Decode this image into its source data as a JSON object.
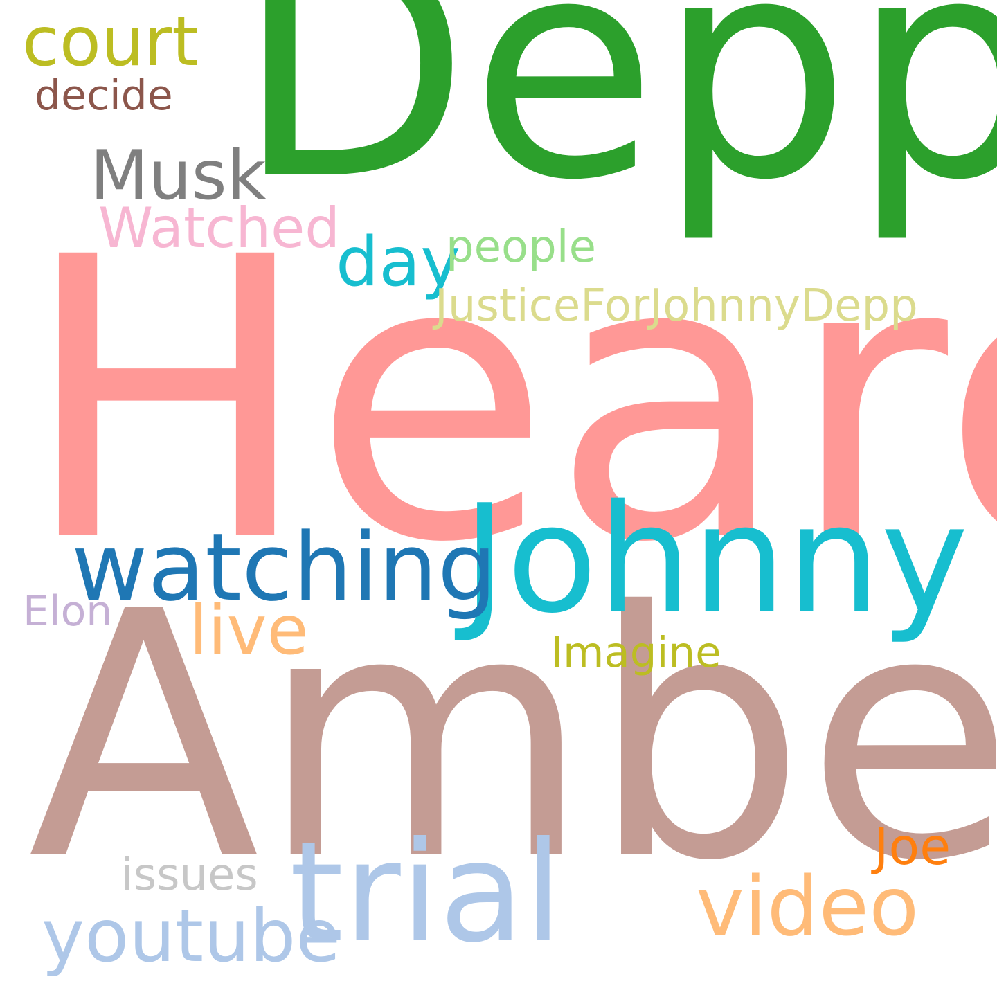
{
  "words": [
    {
      "key": "heard",
      "text": "Heard",
      "color": "#ff9896"
    },
    {
      "key": "depp",
      "text": "Depp",
      "color": "#2ca02c"
    },
    {
      "key": "amber",
      "text": "Amber",
      "color": "#c49c94"
    },
    {
      "key": "johnny",
      "text": "Johnny",
      "color": "#17becf"
    },
    {
      "key": "trial",
      "text": "trial",
      "color": "#aec7e8"
    },
    {
      "key": "watching",
      "text": "watching",
      "color": "#1f77b4"
    },
    {
      "key": "video",
      "text": "video",
      "color": "#ffbb78"
    },
    {
      "key": "youtube",
      "text": "youtube",
      "color": "#aec7e8"
    },
    {
      "key": "musk",
      "text": "Musk",
      "color": "#7f7f7f"
    },
    {
      "key": "court",
      "text": "court",
      "color": "#bcbd22"
    },
    {
      "key": "live",
      "text": "live",
      "color": "#ffbb78"
    },
    {
      "key": "day",
      "text": "day",
      "color": "#17becf"
    },
    {
      "key": "watched",
      "text": "Watched",
      "color": "#f7b6d2"
    },
    {
      "key": "justice",
      "text": "JusticeForJohnnyDepp",
      "color": "#dbdb8d"
    },
    {
      "key": "joe",
      "text": "Joe",
      "color": "#ff7f0e"
    },
    {
      "key": "people",
      "text": "people",
      "color": "#98df8a"
    },
    {
      "key": "issues",
      "text": "issues",
      "color": "#c7c7c7"
    },
    {
      "key": "imagine",
      "text": "Imagine",
      "color": "#bcbd22"
    },
    {
      "key": "elon",
      "text": "Elon",
      "color": "#c5b0d5"
    },
    {
      "key": "decide",
      "text": "decide",
      "color": "#8c564b"
    }
  ]
}
